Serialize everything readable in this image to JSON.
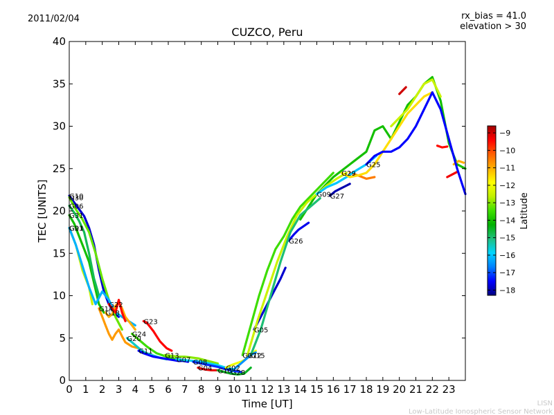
{
  "header": {
    "date": "2011/02/04",
    "rx_bias": "rx_bias = 41.0",
    "elevation": "elevation > 30"
  },
  "footer": {
    "line1": "LISN",
    "line2": "Low-Latitude Ionospheric Sensor Network"
  },
  "chart_data": {
    "type": "scatter",
    "title": "CUZCO, Peru",
    "xlabel": "Time [UT]",
    "ylabel": "TEC [UNITS]",
    "xlim": [
      0,
      24
    ],
    "ylim": [
      0,
      40
    ],
    "xticks": [
      0,
      1,
      2,
      3,
      4,
      5,
      6,
      7,
      8,
      9,
      10,
      11,
      12,
      13,
      14,
      15,
      16,
      17,
      18,
      19,
      20,
      21,
      22,
      23
    ],
    "yticks": [
      0,
      5,
      10,
      15,
      20,
      25,
      30,
      35,
      40
    ],
    "grid": false,
    "colorbar": {
      "label": "Latitude",
      "min": -18.3,
      "max": -8.6,
      "ticks": [
        -18,
        -17,
        -16,
        -15,
        -14,
        -13,
        -12,
        -11,
        -10,
        -9
      ],
      "colormap": [
        "#000080",
        "#0000ff",
        "#0080ff",
        "#00d4ff",
        "#20c080",
        "#00b000",
        "#40e000",
        "#c0f000",
        "#ffff00",
        "#ffb000",
        "#ff6000",
        "#ff0000",
        "#a00000"
      ]
    },
    "series": [
      {
        "name": "G10",
        "lat": -17.8,
        "x": [
          0.0,
          0.3,
          0.6,
          0.9,
          1.2,
          1.5,
          1.8,
          2.1,
          2.4,
          2.7,
          3.0
        ],
        "y": [
          21.8,
          21.0,
          20.2,
          19.4,
          18.0,
          16.0,
          13.0,
          10.5,
          9.0,
          8.0,
          7.5
        ]
      },
      {
        "name": "G30",
        "lat": -13.2,
        "x": [
          0.0,
          0.4,
          0.8,
          1.2,
          1.6,
          2.0,
          2.4,
          2.8,
          3.2
        ],
        "y": [
          21.6,
          20.2,
          19.0,
          17.5,
          15.0,
          12.0,
          9.5,
          7.5,
          6.0
        ]
      },
      {
        "name": "G31",
        "lat": -14.0,
        "x": [
          0.0,
          0.3,
          0.6,
          0.9,
          1.2,
          1.5,
          1.8,
          2.1
        ],
        "y": [
          19.5,
          18.5,
          17.0,
          15.5,
          14.0,
          11.5,
          9.0,
          8.0
        ]
      },
      {
        "name": "G06",
        "lat": -14.8,
        "x": [
          0.0,
          0.3,
          0.6,
          0.9,
          1.2,
          1.5,
          1.8
        ],
        "y": [
          20.6,
          19.8,
          18.8,
          17.5,
          15.0,
          12.0,
          10.0
        ]
      },
      {
        "name": "G21",
        "lat": -12.5,
        "x": [
          0.0,
          0.2,
          0.4,
          0.6,
          0.8,
          1.0,
          1.2,
          1.4
        ],
        "y": [
          18.0,
          17.0,
          16.0,
          14.5,
          13.0,
          12.0,
          11.0,
          9.0
        ]
      },
      {
        "name": "G03",
        "lat": -16.2,
        "x": [
          0.0,
          0.4,
          0.8,
          1.2,
          1.6,
          2.0,
          2.4,
          2.8,
          3.2,
          3.6,
          4.0
        ],
        "y": [
          18.0,
          16.0,
          13.5,
          11.0,
          9.0,
          10.5,
          9.5,
          8.0,
          7.5,
          7.0,
          6.5
        ]
      },
      {
        "name": "G18",
        "lat": -11.0,
        "x": [
          2.2,
          2.4,
          2.6,
          2.8,
          3.0,
          3.2,
          3.4,
          3.6,
          3.8,
          4.0
        ],
        "y": [
          8.0,
          7.5,
          7.8,
          8.8,
          9.2,
          8.5,
          7.5,
          7.0,
          6.5,
          6.0
        ]
      },
      {
        "name": "G22",
        "lat": -9.5,
        "x": [
          2.4,
          2.6,
          2.8,
          3.0,
          3.2,
          3.4
        ],
        "y": [
          9.0,
          8.5,
          8.0,
          9.5,
          8.0,
          7.0
        ]
      },
      {
        "name": "G14",
        "lat": -10.8,
        "x": [
          1.8,
          2.0,
          2.2,
          2.4,
          2.6,
          2.8,
          3.0,
          3.2,
          3.4,
          3.8,
          4.2
        ],
        "y": [
          8.5,
          7.5,
          6.5,
          5.5,
          4.8,
          5.5,
          6.0,
          5.2,
          4.5,
          4.0,
          3.8
        ]
      },
      {
        "name": "G23",
        "lat": -9.4,
        "x": [
          4.5,
          4.7,
          4.9,
          5.1,
          5.3,
          5.5,
          5.7,
          5.9,
          6.2
        ],
        "y": [
          7.0,
          6.8,
          6.3,
          5.8,
          5.2,
          4.6,
          4.2,
          3.8,
          3.5
        ]
      },
      {
        "name": "G20",
        "lat": -15.5,
        "x": [
          3.5,
          3.8,
          4.1,
          4.4,
          4.7,
          5.0,
          5.3,
          5.6,
          5.9
        ],
        "y": [
          5.0,
          4.5,
          4.0,
          3.5,
          3.2,
          3.0,
          2.8,
          2.6,
          2.5
        ]
      },
      {
        "name": "G24",
        "lat": -13.5,
        "x": [
          3.8,
          4.1,
          4.4,
          4.7,
          5.0,
          5.3,
          5.6,
          5.9,
          6.2,
          6.5
        ],
        "y": [
          5.5,
          5.0,
          4.5,
          4.0,
          3.6,
          3.2,
          3.0,
          2.8,
          2.6,
          2.5
        ]
      },
      {
        "name": "G11",
        "lat": -17.5,
        "x": [
          4.2,
          4.5,
          4.8,
          5.1,
          5.4,
          5.7,
          6.0,
          6.3,
          6.6,
          6.9,
          7.2
        ],
        "y": [
          3.5,
          3.2,
          3.0,
          2.8,
          2.7,
          2.6,
          2.5,
          2.4,
          2.3,
          2.3,
          2.2
        ]
      },
      {
        "name": "G13",
        "lat": -13.0,
        "x": [
          5.8,
          6.2,
          6.6,
          7.0,
          7.4,
          7.8,
          8.2,
          8.6,
          9.0
        ],
        "y": [
          3.0,
          2.9,
          2.8,
          2.8,
          2.7,
          2.6,
          2.4,
          2.2,
          2.0
        ]
      },
      {
        "name": "G07",
        "lat": -15.8,
        "x": [
          6.5,
          7.0,
          7.5,
          8.0,
          8.5,
          9.0,
          9.5,
          10.0
        ],
        "y": [
          2.5,
          2.4,
          2.3,
          2.2,
          2.0,
          1.8,
          1.5,
          1.3
        ]
      },
      {
        "name": "G08",
        "lat": -17.2,
        "x": [
          7.5,
          8.0,
          8.5,
          9.0,
          9.5,
          10.0,
          10.4
        ],
        "y": [
          2.2,
          2.0,
          1.8,
          1.6,
          1.3,
          1.1,
          1.0
        ]
      },
      {
        "name": "G04",
        "lat": -9.2,
        "x": [
          7.8,
          8.2,
          8.6,
          9.0,
          9.4,
          9.8
        ],
        "y": [
          1.5,
          1.3,
          1.2,
          1.2,
          1.0,
          0.8
        ]
      },
      {
        "name": "G10",
        "lat": -14.5,
        "x": [
          9.0,
          9.4,
          9.8,
          10.2,
          10.6,
          11.0
        ],
        "y": [
          1.2,
          1.0,
          0.8,
          0.7,
          0.8,
          1.5
        ]
      },
      {
        "name": "G02",
        "lat": -12.0,
        "x": [
          9.5,
          9.8,
          10.1,
          10.4,
          10.7,
          11.0,
          11.3
        ],
        "y": [
          1.5,
          1.8,
          2.0,
          2.2,
          2.5,
          3.0,
          3.5
        ]
      },
      {
        "name": "G28",
        "lat": -16.5,
        "x": [
          9.8,
          10.1,
          10.4,
          10.7,
          11.0,
          11.3
        ],
        "y": [
          1.0,
          1.5,
          2.0,
          2.5,
          3.0,
          3.3
        ]
      },
      {
        "name": "G05",
        "lat": -17.8,
        "x": [
          11.2,
          11.6,
          12.0,
          12.4,
          12.8,
          13.1
        ],
        "y": [
          6.0,
          7.5,
          9.0,
          10.5,
          12.0,
          13.3
        ]
      },
      {
        "name": "G26",
        "lat": -17.6,
        "x": [
          13.3,
          13.6,
          13.9,
          14.2,
          14.5
        ],
        "y": [
          16.5,
          17.2,
          17.8,
          18.2,
          18.6
        ]
      },
      {
        "name": "G17",
        "lat": -13.5,
        "x": [
          10.5,
          11.0,
          11.5,
          12.0,
          12.5,
          13.0,
          13.5,
          14.0,
          14.5,
          15.0,
          15.5,
          16.0
        ],
        "y": [
          3.0,
          6.5,
          10.0,
          13.0,
          15.5,
          17.0,
          19.0,
          20.5,
          21.5,
          22.5,
          23.5,
          24.5
        ]
      },
      {
        "name": "G12",
        "lat": -12.5,
        "x": [
          10.8,
          11.4,
          12.0,
          12.6,
          13.2,
          13.8,
          14.4,
          15.0,
          15.6,
          16.2,
          16.8
        ],
        "y": [
          3.0,
          7.0,
          10.5,
          14.0,
          17.0,
          19.5,
          21.0,
          22.0,
          23.0,
          23.8,
          24.5
        ]
      },
      {
        "name": "G15",
        "lat": -15.0,
        "x": [
          11.0,
          11.6,
          12.2,
          12.8,
          13.4,
          14.0,
          14.6,
          15.2
        ],
        "y": [
          3.0,
          6.0,
          10.0,
          14.0,
          17.5,
          19.5,
          20.5,
          21.5
        ]
      },
      {
        "name": "G27",
        "lat": -18.0,
        "x": [
          15.8,
          16.1,
          16.4,
          16.7,
          17.0
        ],
        "y": [
          21.8,
          22.3,
          22.6,
          22.9,
          23.2
        ]
      },
      {
        "name": "G09",
        "lat": -16.0,
        "x": [
          15.0,
          15.6,
          16.2,
          16.8,
          17.4,
          18.0,
          18.6
        ],
        "y": [
          22.0,
          22.8,
          23.3,
          24.0,
          24.8,
          25.5,
          26.5
        ]
      },
      {
        "name": "G29",
        "lat": -11.5,
        "x": [
          16.5,
          17.0,
          17.5,
          18.0,
          18.5,
          19.0,
          19.5,
          20.0,
          20.5,
          21.0,
          21.5,
          22.0
        ],
        "y": [
          24.5,
          24.0,
          24.2,
          24.5,
          25.5,
          27.0,
          28.5,
          30.0,
          31.5,
          32.5,
          33.5,
          34.0
        ]
      },
      {
        "name": "G25",
        "lat": -17.5,
        "x": [
          18.0,
          18.5,
          19.0,
          19.5,
          20.0,
          20.5,
          21.0,
          21.5,
          22.0,
          22.5,
          23.0,
          23.5,
          24.0
        ],
        "y": [
          25.5,
          26.5,
          27.0,
          27.0,
          27.5,
          28.5,
          30.0,
          32.0,
          34.0,
          32.0,
          28.5,
          25.0,
          22.0
        ]
      }
    ],
    "extra_traces": [
      {
        "lat": -14.0,
        "x": [
          14.0,
          15.0,
          16.0,
          17.0,
          18.0,
          18.5,
          19.0,
          19.5,
          20.0,
          20.5,
          21.0,
          21.5,
          22.0,
          22.5,
          23.0,
          23.5,
          24.0
        ],
        "y": [
          19.0,
          22.0,
          24.0,
          25.5,
          27.0,
          29.5,
          30.0,
          28.5,
          30.5,
          32.5,
          33.5,
          35.0,
          35.8,
          33.0,
          28.0,
          25.5,
          25.0
        ]
      },
      {
        "lat": -12.5,
        "x": [
          19.5,
          20.0,
          20.5,
          21.0,
          21.5,
          22.0,
          22.5
        ],
        "y": [
          30.0,
          31.0,
          32.0,
          33.5,
          35.0,
          35.5,
          33.5
        ]
      },
      {
        "lat": -9.0,
        "x": [
          20.0,
          20.2,
          20.4
        ],
        "y": [
          33.8,
          34.2,
          34.6
        ]
      },
      {
        "lat": -9.5,
        "x": [
          22.3,
          22.6,
          22.9
        ],
        "y": [
          27.7,
          27.5,
          27.6
        ]
      },
      {
        "lat": -9.3,
        "x": [
          22.9,
          23.2,
          23.5
        ],
        "y": [
          24.0,
          24.3,
          24.6
        ]
      },
      {
        "lat": -11.0,
        "x": [
          23.3,
          23.6,
          23.9
        ],
        "y": [
          25.5,
          25.9,
          25.7
        ]
      },
      {
        "lat": -10.5,
        "x": [
          17.0,
          17.5,
          18.0,
          18.5
        ],
        "y": [
          24.5,
          24.2,
          23.8,
          24.0
        ]
      }
    ]
  }
}
